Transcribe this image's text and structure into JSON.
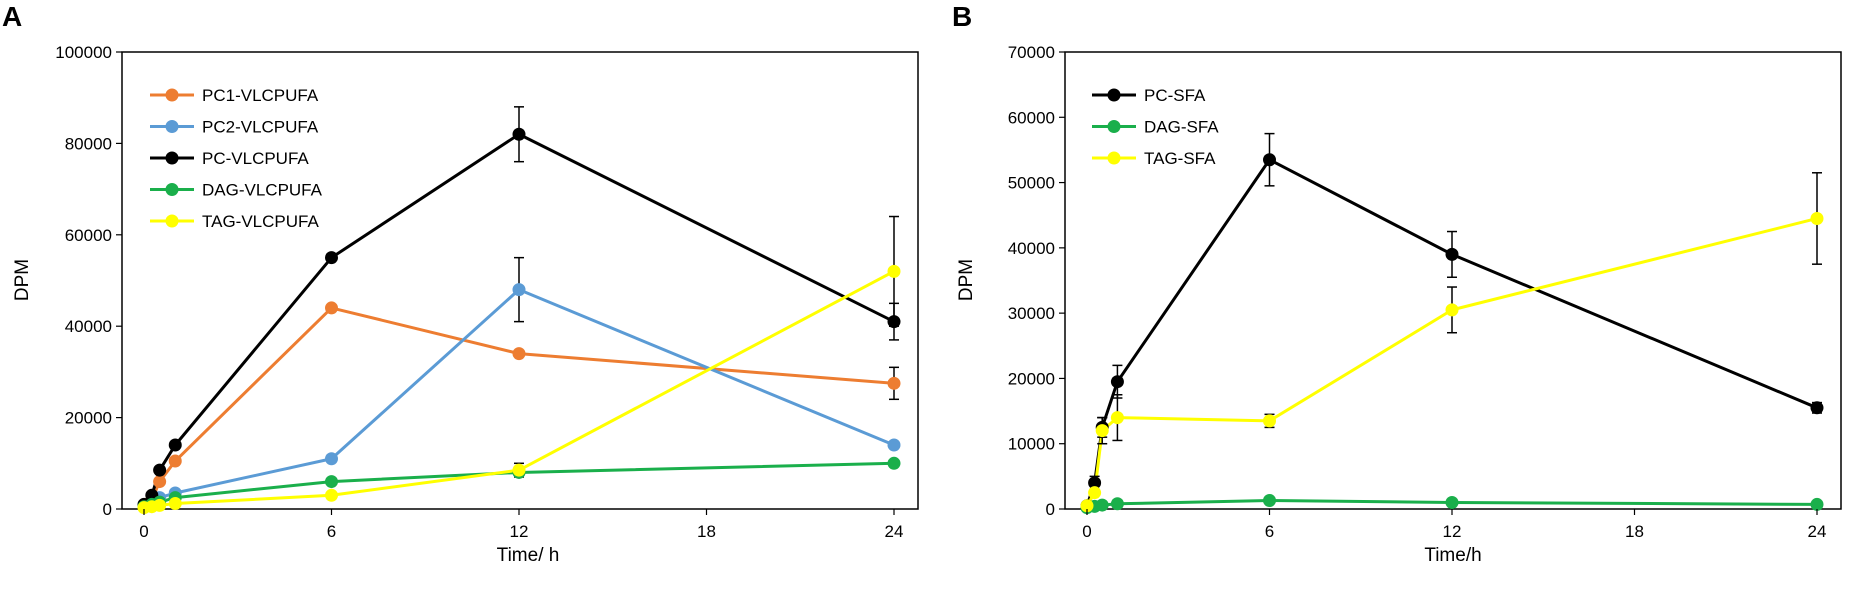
{
  "chart_data": [
    {
      "panel": "A",
      "type": "line",
      "title": "",
      "xlabel": "Time/ h",
      "ylabel": "DPM",
      "xlim": [
        0,
        24
      ],
      "ylim": [
        0,
        100000
      ],
      "xticks": [
        0,
        6,
        12,
        18,
        24
      ],
      "yticks": [
        0,
        20000,
        40000,
        60000,
        80000,
        100000
      ],
      "x": [
        0,
        0.25,
        0.5,
        1,
        6,
        12,
        24
      ],
      "grid": false,
      "legend_position": "top-left",
      "series": [
        {
          "name": "PC1-VLCPUFA",
          "color": "#ED7D31",
          "values": [
            500,
            2000,
            6000,
            10500,
            44000,
            34000,
            27500
          ],
          "errors": [
            0,
            0,
            0,
            0,
            0,
            0,
            3500
          ]
        },
        {
          "name": "PC2-VLCPUFA",
          "color": "#5B9BD5",
          "values": [
            500,
            1000,
            2500,
            3500,
            11000,
            48000,
            14000
          ],
          "errors": [
            0,
            0,
            0,
            0,
            0,
            7000,
            0
          ]
        },
        {
          "name": "PC-VLCPUFA",
          "color": "#000000",
          "values": [
            1000,
            3000,
            8500,
            14000,
            55000,
            82000,
            41000
          ],
          "errors": [
            0,
            0,
            0,
            0,
            0,
            6000,
            4000
          ]
        },
        {
          "name": "DAG-VLCPUFA",
          "color": "#1AAF4B",
          "values": [
            500,
            1000,
            1500,
            2500,
            6000,
            8000,
            10000
          ],
          "errors": [
            0,
            0,
            0,
            0,
            0,
            0,
            0
          ]
        },
        {
          "name": "TAG-VLCPUFA",
          "color": "#FFFF00",
          "values": [
            300,
            500,
            800,
            1200,
            3000,
            8500,
            52000
          ],
          "errors": [
            0,
            0,
            0,
            0,
            0,
            1500,
            12000
          ]
        }
      ]
    },
    {
      "panel": "B",
      "type": "line",
      "title": "",
      "xlabel": "Time/h",
      "ylabel": "DPM",
      "xlim": [
        0,
        24
      ],
      "ylim": [
        0,
        70000
      ],
      "xticks": [
        0,
        6,
        12,
        18,
        24
      ],
      "yticks": [
        0,
        10000,
        20000,
        30000,
        40000,
        50000,
        60000,
        70000
      ],
      "x": [
        0,
        0.25,
        0.5,
        1,
        6,
        12,
        24
      ],
      "grid": false,
      "legend_position": "top-left",
      "series": [
        {
          "name": "PC-SFA",
          "color": "#000000",
          "values": [
            500,
            4000,
            12500,
            19500,
            53500,
            39000,
            15500
          ],
          "errors": [
            0,
            1000,
            1500,
            2500,
            4000,
            3500,
            800
          ]
        },
        {
          "name": "DAG-SFA",
          "color": "#1AAF4B",
          "values": [
            200,
            400,
            600,
            800,
            1300,
            1000,
            700
          ],
          "errors": [
            0,
            0,
            0,
            0,
            0,
            0,
            0
          ]
        },
        {
          "name": "TAG-SFA",
          "color": "#FFFF00",
          "values": [
            500,
            2500,
            12000,
            14000,
            13500,
            30500,
            44500
          ],
          "errors": [
            0,
            0,
            2000,
            3500,
            1000,
            3500,
            7000
          ]
        }
      ]
    }
  ]
}
